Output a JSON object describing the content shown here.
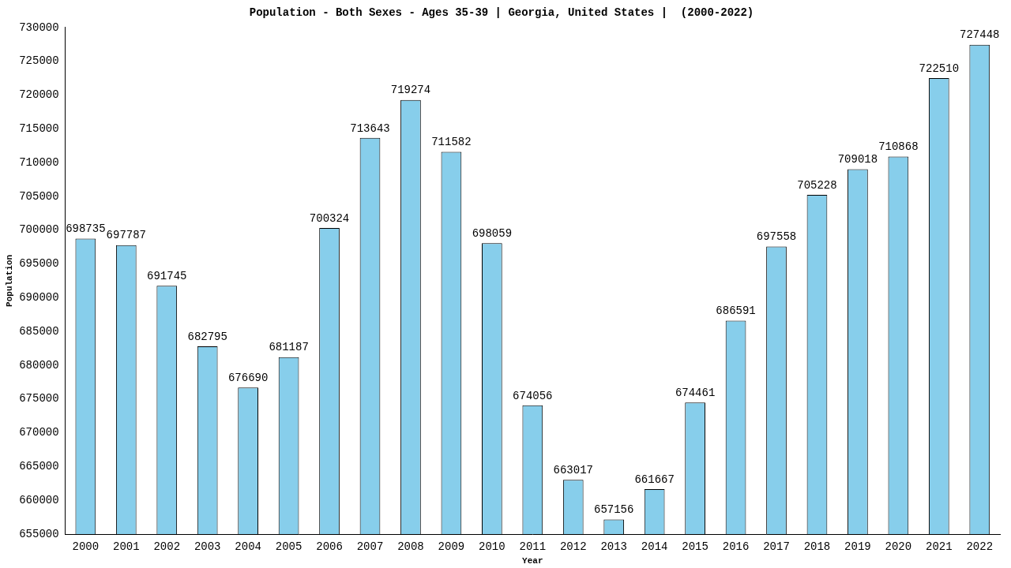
{
  "chart_data": {
    "type": "bar",
    "title": "Population - Both Sexes - Ages 35-39 | Georgia, United States |  (2000-2022)",
    "x_label": "Year",
    "y_label": "Population",
    "categories": [
      "2000",
      "2001",
      "2002",
      "2003",
      "2004",
      "2005",
      "2006",
      "2007",
      "2008",
      "2009",
      "2010",
      "2011",
      "2012",
      "2013",
      "2014",
      "2015",
      "2016",
      "2017",
      "2018",
      "2019",
      "2020",
      "2021",
      "2022"
    ],
    "values": [
      698735,
      697787,
      691745,
      682795,
      676690,
      681187,
      700324,
      713643,
      719274,
      711582,
      698059,
      674056,
      663017,
      657156,
      661667,
      674461,
      686591,
      697558,
      705228,
      709018,
      710868,
      722510,
      727448
    ],
    "color": "#87ceeb",
    "ylim": [
      655000,
      730000
    ],
    "yticks": [
      655000,
      660000,
      665000,
      670000,
      675000,
      680000,
      685000,
      690000,
      695000,
      700000,
      705000,
      710000,
      715000,
      720000,
      725000,
      730000
    ],
    "grid": false,
    "data_labels": true
  }
}
